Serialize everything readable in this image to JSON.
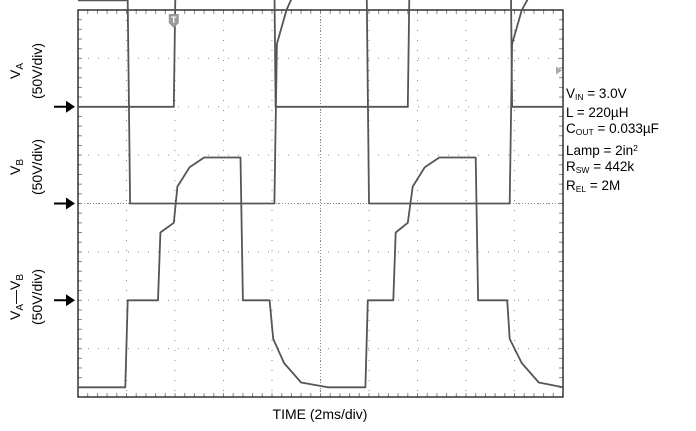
{
  "chart_data": {
    "type": "line",
    "title": "",
    "xlabel": "TIME (2ms/div)",
    "x_unit": "ms",
    "x_divisions": 10,
    "y_divisions": 8,
    "grid": true,
    "channels": [
      {
        "name_main": "V",
        "name_sub": "A",
        "scale": "(50V/div)",
        "ground_div": 6.0,
        "points": [
          [
            0,
            0.0
          ],
          [
            3.95,
            0.0
          ],
          [
            4.05,
            3.6
          ],
          [
            4.5,
            4.3
          ],
          [
            5.0,
            4.9
          ],
          [
            5.5,
            5.05
          ],
          [
            8.05,
            5.05
          ],
          [
            8.15,
            0.0
          ],
          [
            13.6,
            0.0
          ],
          [
            13.7,
            3.6
          ],
          [
            14.1,
            4.3
          ],
          [
            14.6,
            4.9
          ],
          [
            15.1,
            5.05
          ],
          [
            17.8,
            5.05
          ],
          [
            17.9,
            0.0
          ],
          [
            20.0,
            0.0
          ]
        ]
      },
      {
        "name_main": "V",
        "name_sub": "B",
        "scale": "(50V/div)",
        "ground_div": 4.0,
        "points": [
          [
            0,
            4.2
          ],
          [
            2.05,
            4.2
          ],
          [
            2.15,
            0.0
          ],
          [
            8.1,
            0.0
          ],
          [
            8.2,
            3.3
          ],
          [
            8.6,
            4.0
          ],
          [
            9.0,
            4.45
          ],
          [
            9.5,
            4.6
          ],
          [
            11.9,
            4.6
          ],
          [
            12.0,
            0.0
          ],
          [
            17.8,
            0.0
          ],
          [
            17.9,
            3.3
          ],
          [
            18.3,
            4.0
          ],
          [
            18.8,
            4.45
          ],
          [
            20.0,
            4.5
          ]
        ]
      },
      {
        "name_main": "V",
        "name_sub": "A",
        "name_sep": "—",
        "name_main2": "V",
        "name_sub2": "B",
        "scale": "(50V/div)",
        "ground_div": 2.0,
        "points": [
          [
            0,
            -1.8
          ],
          [
            1.95,
            -1.8
          ],
          [
            2.05,
            0.0
          ],
          [
            3.3,
            0.0
          ],
          [
            3.4,
            1.4
          ],
          [
            3.95,
            1.6
          ],
          [
            4.1,
            2.35
          ],
          [
            4.6,
            2.75
          ],
          [
            5.2,
            2.95
          ],
          [
            6.7,
            2.95
          ],
          [
            6.8,
            0.0
          ],
          [
            7.9,
            0.0
          ],
          [
            8.05,
            -0.8
          ],
          [
            8.5,
            -1.3
          ],
          [
            9.2,
            -1.7
          ],
          [
            10.3,
            -1.8
          ],
          [
            11.85,
            -1.8
          ],
          [
            11.95,
            0.0
          ],
          [
            13.0,
            0.0
          ],
          [
            13.1,
            1.4
          ],
          [
            13.6,
            1.6
          ],
          [
            13.8,
            2.35
          ],
          [
            14.3,
            2.75
          ],
          [
            14.9,
            2.95
          ],
          [
            16.4,
            2.95
          ],
          [
            16.5,
            0.0
          ],
          [
            17.7,
            0.0
          ],
          [
            17.8,
            -0.8
          ],
          [
            18.3,
            -1.3
          ],
          [
            19.0,
            -1.7
          ],
          [
            20.0,
            -1.8
          ]
        ]
      }
    ],
    "ticks": [
      "0",
      "2",
      "4",
      "6",
      "8",
      "10",
      "12",
      "14",
      "16",
      "18",
      "20"
    ]
  },
  "params": [
    {
      "main": "V",
      "sub": "IN",
      "rest": " = 3.0V"
    },
    {
      "main": "L",
      "sub": "",
      "rest": " = 220µH"
    },
    {
      "main": "C",
      "sub": "OUT",
      "rest": " = 0.033µF"
    },
    {
      "main": "Lamp = 2in",
      "sup": "2",
      "rest": ""
    },
    {
      "main": "R",
      "sub": "SW",
      "rest": " = 442k"
    },
    {
      "main": "R",
      "sub": "EL",
      "rest": " = 2M"
    }
  ],
  "colors": {
    "trace": "#555555",
    "grid": "#888888",
    "frame": "#000000"
  },
  "icons": {
    "trigger": "trigger-marker-icon",
    "level": "trigger-level-icon",
    "ground": "ground-arrow-icon"
  }
}
